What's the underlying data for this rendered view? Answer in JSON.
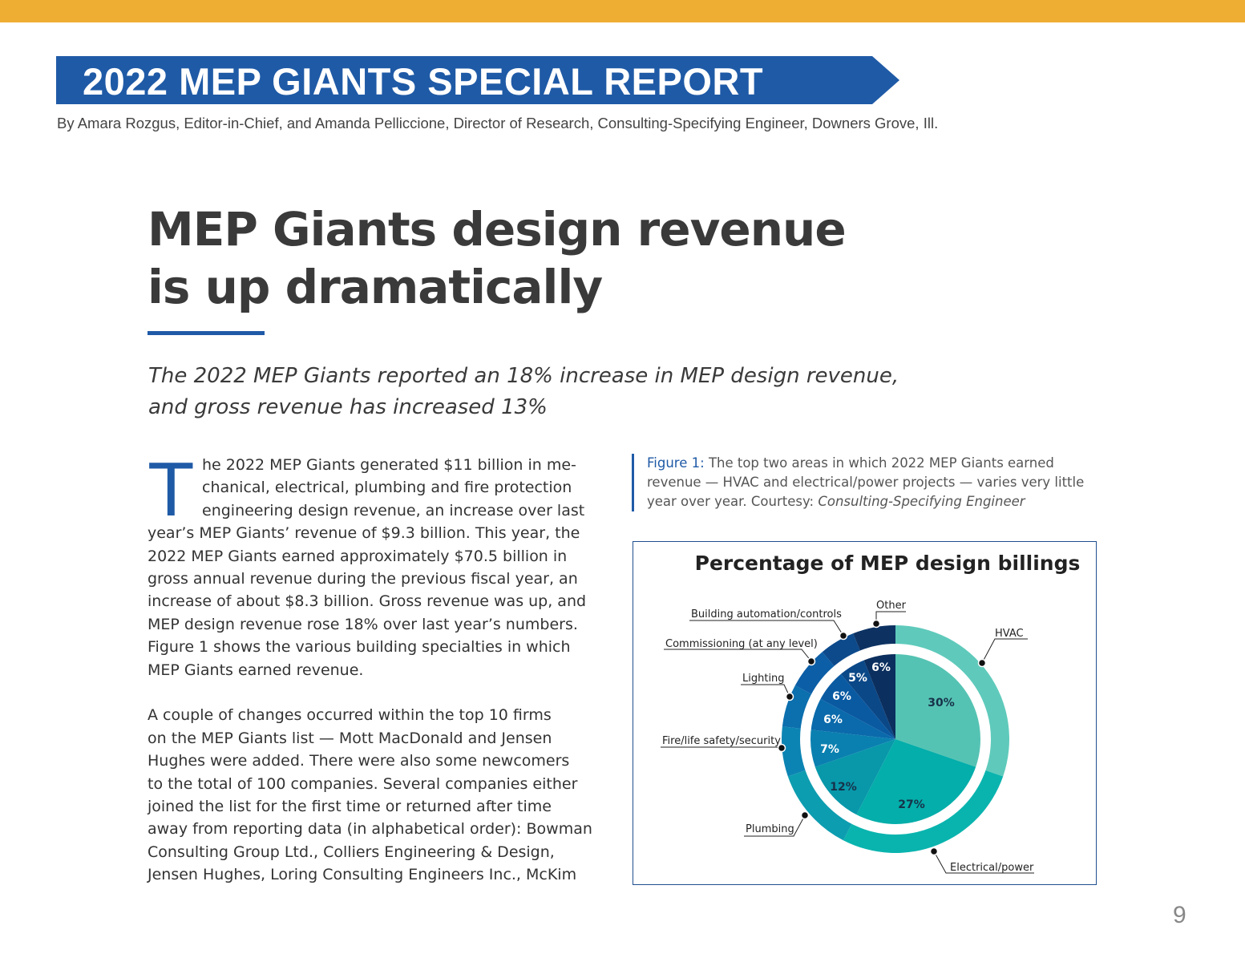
{
  "header": {
    "accent_color": "#eeae33",
    "banner_color": "#1f5aa6",
    "banner_title": "2022 MEP GIANTS SPECIAL REPORT",
    "byline": "By Amara Rozgus, Editor-in-Chief, and Amanda Pelliccione, Director of Research, Consulting-Specifying Engineer, Downers Grove, Ill."
  },
  "article": {
    "title_lines": [
      "MEP Giants design revenue",
      "is up dramatically"
    ],
    "subtitle_lines": [
      "The 2022 MEP Giants reported an 18% increase in MEP design revenue,",
      "and gross revenue has increased 13%"
    ],
    "drop_cap": "T",
    "paragraph1_lines": [
      "he 2022 MEP Giants generated $11 billion in me-",
      "chanical, electrical, plumbing and fire protection",
      "engineering design revenue, an increase over last",
      "year’s MEP Giants’ revenue of $9.3 billion. This year, the",
      "2022 MEP Giants earned approximately $70.5 billion in",
      "gross annual revenue during the previous fiscal year, an",
      "increase of about $8.3 billion. Gross revenue was up, and",
      "MEP design revenue rose 18% over last year’s numbers.",
      "Figure 1 shows the various building specialties in which",
      "MEP Giants earned revenue."
    ],
    "paragraph2_lines": [
      "A couple of changes occurred within the top 10 firms",
      "on the MEP Giants list — Mott MacDonald and Jensen",
      "Hughes were added. There were also some newcomers",
      "to the total of 100 companies. Several companies either",
      "joined the list for the first time or returned after time",
      "away from reporting data (in alphabetical order): Bowman",
      "Consulting Group Ltd., Colliers Engineering & Design,",
      "Jensen Hughes, Loring Consulting Engineers Inc., McKim"
    ]
  },
  "figure": {
    "label": "Figure 1:",
    "caption_lines": [
      "The top two areas in which 2022 MEP Giants earned",
      "revenue — HVAC and electrical/power projects — varies very little",
      "year over year. Courtesy: "
    ],
    "courtesy": "Consulting-Specifying Engineer"
  },
  "chart_data": {
    "type": "pie",
    "title": "Percentage of MEP design billings",
    "start": "top, clockwise",
    "slices": [
      {
        "name": "HVAC",
        "value": 30,
        "label": "30%",
        "color": "#55c3b3",
        "outer_color": "#5fcabb"
      },
      {
        "name": "Electrical/power",
        "value": 27,
        "label": "27%",
        "color": "#04aeaa",
        "outer_color": "#0ab4ae"
      },
      {
        "name": "Plumbing",
        "value": 12,
        "label": "12%",
        "color": "#0898aa",
        "outer_color": "#0d9db0"
      },
      {
        "name": "Fire/life safety/security",
        "value": 7,
        "label": "7%",
        "color": "#0a80b0",
        "outer_color": "#0c84b3"
      },
      {
        "name": "Lighting",
        "value": 6,
        "label": "6%",
        "color": "#0a6aab",
        "outer_color": "#0c6fae"
      },
      {
        "name": "Commissioning (at any level)",
        "value": 6,
        "label": "6%",
        "color": "#0a5aa2",
        "outer_color": "#0c5ea6"
      },
      {
        "name": "Building automation/controls",
        "value": 5,
        "label": "5%",
        "color": "#0b4888",
        "outer_color": "#0d4a8c"
      },
      {
        "name": "Other",
        "value": 6,
        "label": "6%",
        "color": "#0b2f5e",
        "outer_color": "#0d3262"
      }
    ]
  },
  "page_number": "9"
}
